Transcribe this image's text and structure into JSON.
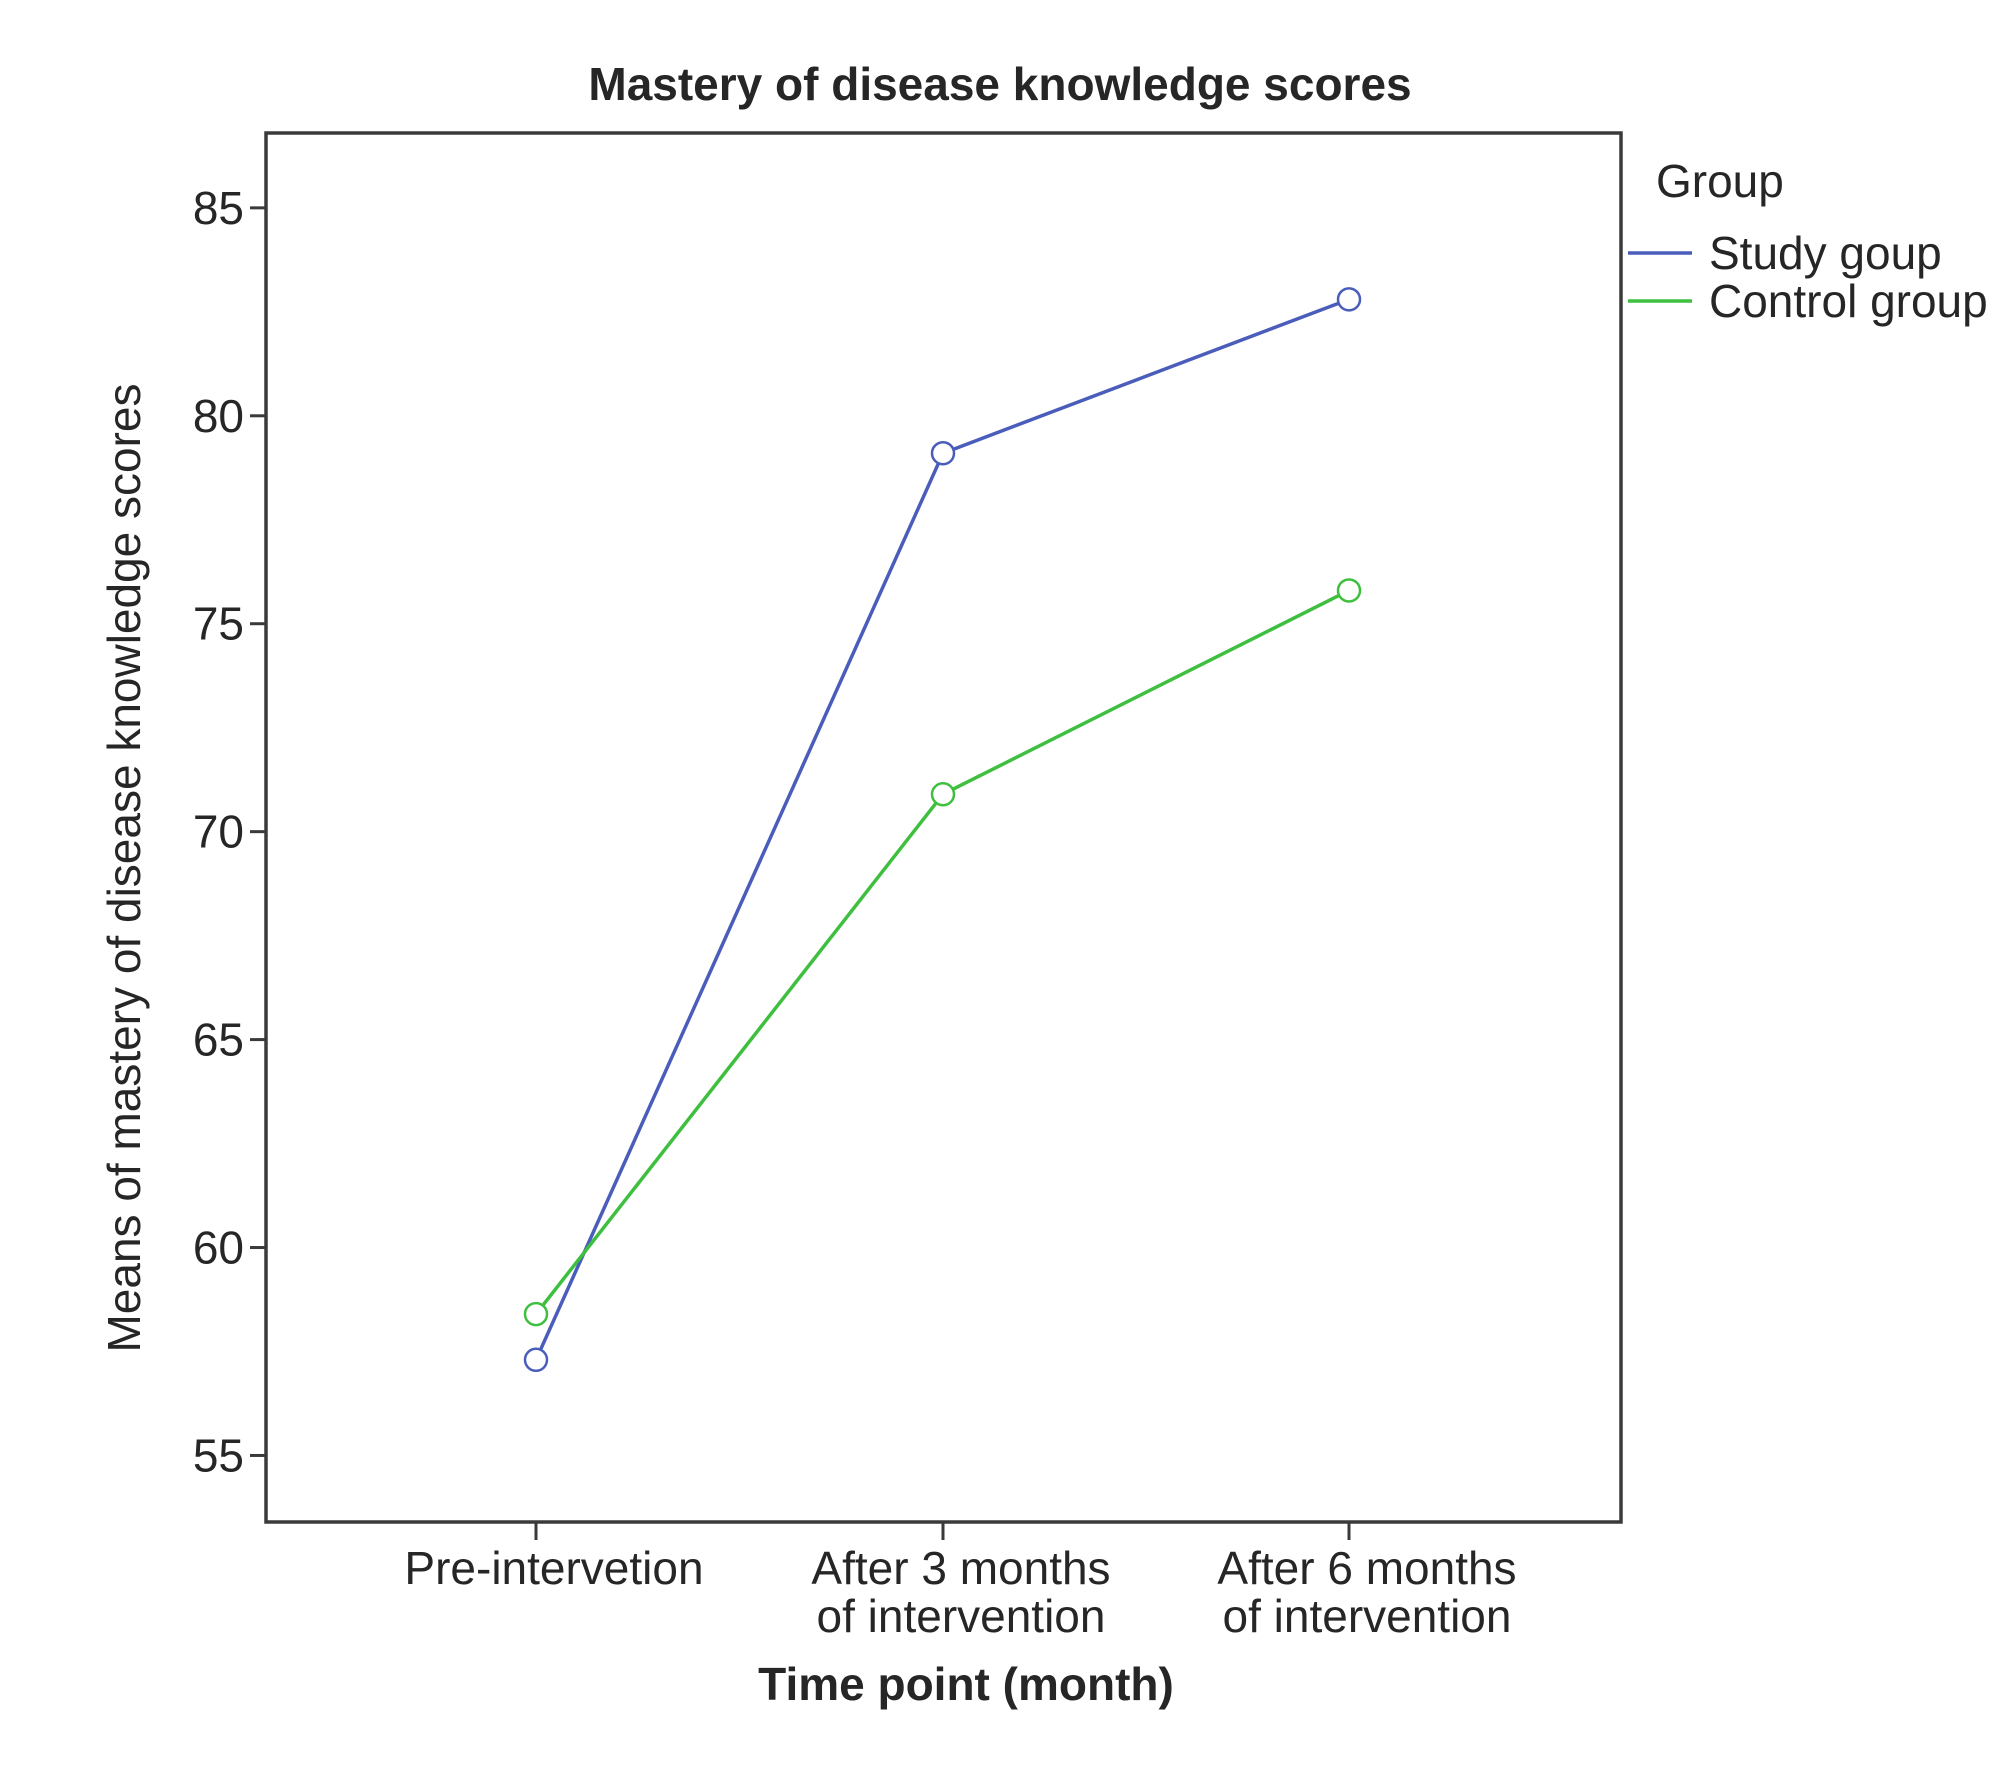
{
  "chart_data": {
    "type": "line",
    "title": "Mastery of disease knowledge scores",
    "xlabel": "Time point (month)",
    "ylabel": "Means of mastery of disease knowledge scores",
    "categories": [
      [
        "Pre-intervetion"
      ],
      [
        "After 3 months",
        "of intervention"
      ],
      [
        "After 6 months",
        "of intervention"
      ]
    ],
    "ylim": [
      53.4,
      86.8
    ],
    "yticks": [
      55,
      60,
      65,
      70,
      75,
      80,
      85
    ],
    "grid": false,
    "legend": {
      "title": "Group",
      "position": "right"
    },
    "series": [
      {
        "name": "Study goup",
        "color": "#4a5dbb",
        "values": [
          57.3,
          79.1,
          82.8
        ]
      },
      {
        "name": "Control group",
        "color": "#3fbf3f",
        "values": [
          58.4,
          70.9,
          75.8
        ]
      }
    ],
    "marker": "open-circle"
  }
}
